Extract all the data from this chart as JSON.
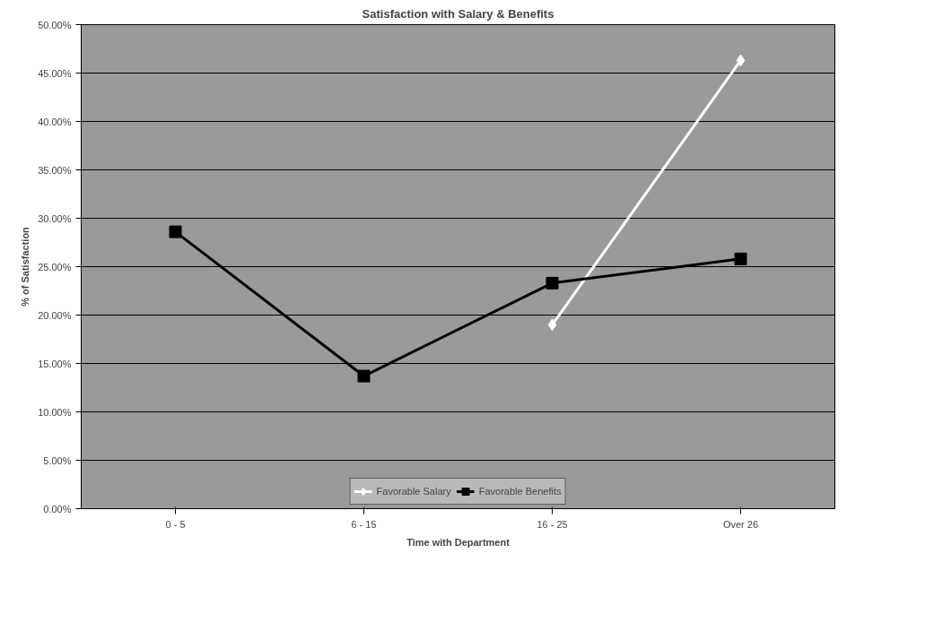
{
  "chart_data": {
    "type": "line",
    "title": "Satisfaction with Salary & Benefits",
    "xlabel": "Time with Department",
    "ylabel": "% of Satisfaction",
    "categories": [
      "0 - 5",
      "6 - 15",
      "16 - 25",
      "Over 26"
    ],
    "series": [
      {
        "name": "Favorable Salary",
        "color": "#ffffff",
        "marker": "diamond",
        "values": [
          null,
          null,
          19,
          46.3
        ]
      },
      {
        "name": "Favorable Benefits",
        "color": "#000000",
        "marker": "square",
        "values": [
          28.6,
          13.7,
          23.3,
          25.8
        ]
      }
    ],
    "ylim": [
      0,
      50
    ],
    "yticks": [
      {
        "value": 0,
        "label": "0.00%"
      },
      {
        "value": 5,
        "label": "5.00%"
      },
      {
        "value": 10,
        "label": "10.00%"
      },
      {
        "value": 15,
        "label": "15.00%"
      },
      {
        "value": 20,
        "label": "20.00%"
      },
      {
        "value": 25,
        "label": "25.00%"
      },
      {
        "value": 30,
        "label": "30.00%"
      },
      {
        "value": 35,
        "label": "35.00%"
      },
      {
        "value": 40,
        "label": "40.00%"
      },
      {
        "value": 45,
        "label": "45.00%"
      },
      {
        "value": 50,
        "label": "50.00%"
      }
    ],
    "grid": "y",
    "legend": "bottom"
  }
}
